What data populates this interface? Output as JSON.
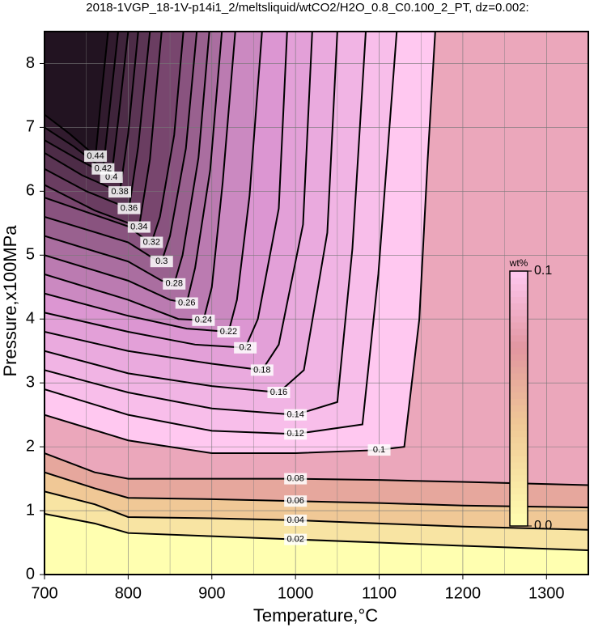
{
  "chart_data": {
    "type": "contour",
    "title": "2018-1VGP_18-1V-p14i1_2/meltsliquid/wtCO2/H2O_0.8_C0.100_2_PT, dz=0.002:",
    "x_label": "Temperature,°C",
    "y_label": "Pressure,x100MPa",
    "xlim": [
      700,
      1350
    ],
    "ylim": [
      0,
      8.5
    ],
    "xticks": [
      700,
      800,
      900,
      1000,
      1100,
      1200,
      1300
    ],
    "yticks": [
      0,
      1,
      2,
      3,
      4,
      5,
      6,
      7,
      8
    ],
    "grid": true,
    "colorbar": {
      "title": "wt%",
      "ticks": [
        {
          "value": 0,
          "label": "0.0"
        },
        0.1
      ]
    },
    "contours": [
      {
        "level": 0.02,
        "x": [
          700,
          760,
          800,
          900,
          1000,
          1100,
          1200,
          1350
        ],
        "y": [
          0.95,
          0.8,
          0.65,
          0.6,
          0.55,
          0.5,
          0.45,
          0.38
        ]
      },
      {
        "level": 0.04,
        "x": [
          700,
          760,
          800,
          900,
          1000,
          1100,
          1200,
          1350
        ],
        "y": [
          1.3,
          1.1,
          0.9,
          0.88,
          0.85,
          0.8,
          0.75,
          0.7
        ]
      },
      {
        "level": 0.06,
        "x": [
          700,
          760,
          800,
          900,
          1000,
          1100,
          1200,
          1350
        ],
        "y": [
          1.6,
          1.35,
          1.2,
          1.18,
          1.15,
          1.12,
          1.08,
          1.05
        ]
      },
      {
        "level": 0.08,
        "x": [
          700,
          760,
          800,
          900,
          1000,
          1100,
          1200,
          1350
        ],
        "y": [
          1.9,
          1.6,
          1.5,
          1.5,
          1.5,
          1.48,
          1.45,
          1.4
        ]
      },
      {
        "level": 0.1,
        "x": [
          700,
          800,
          900,
          1000,
          1100,
          1130,
          1148,
          1158,
          1167
        ],
        "y": [
          2.5,
          2.1,
          1.9,
          1.9,
          1.95,
          2.0,
          4.0,
          6.5,
          8.5
        ]
      },
      {
        "level": 0.12,
        "x": [
          700,
          800,
          900,
          1000,
          1080,
          1099,
          1121
        ],
        "y": [
          2.9,
          2.5,
          2.25,
          2.2,
          2.35,
          4.7,
          8.5
        ]
      },
      {
        "level": 0.14,
        "x": [
          700,
          800,
          900,
          1000,
          1050,
          1068,
          1084
        ],
        "y": [
          3.2,
          2.85,
          2.6,
          2.5,
          2.7,
          5.1,
          8.5
        ]
      },
      {
        "level": 0.16,
        "x": [
          700,
          800,
          900,
          980,
          1010,
          1038,
          1050
        ],
        "y": [
          3.5,
          3.15,
          2.95,
          2.85,
          3.2,
          5.35,
          8.5
        ]
      },
      {
        "level": 0.18,
        "x": [
          700,
          800,
          900,
          960,
          980,
          1009,
          1020
        ],
        "y": [
          3.8,
          3.5,
          3.3,
          3.2,
          3.6,
          5.48,
          8.5
        ]
      },
      {
        "level": 0.2,
        "x": [
          700,
          800,
          880,
          940,
          955,
          980,
          990
        ],
        "y": [
          4.1,
          3.8,
          3.6,
          3.55,
          4.0,
          5.73,
          8.5
        ]
      },
      {
        "level": 0.22,
        "x": [
          700,
          800,
          870,
          920,
          930,
          945,
          960
        ],
        "y": [
          4.4,
          4.05,
          3.85,
          3.8,
          4.3,
          5.92,
          8.5
        ]
      },
      {
        "level": 0.24,
        "x": [
          700,
          800,
          860,
          890,
          900,
          913,
          928
        ],
        "y": [
          4.7,
          4.3,
          4.0,
          3.98,
          4.5,
          6.14,
          8.5
        ]
      },
      {
        "level": 0.26,
        "x": [
          700,
          800,
          850,
          870,
          880,
          898,
          912
        ],
        "y": [
          5.0,
          4.6,
          4.3,
          4.25,
          4.8,
          6.33,
          8.5
        ]
      },
      {
        "level": 0.28,
        "x": [
          700,
          800,
          840,
          855,
          865,
          884,
          897
        ],
        "y": [
          5.3,
          4.9,
          4.6,
          4.55,
          5.0,
          6.52,
          8.5
        ]
      },
      {
        "level": 0.3,
        "x": [
          700,
          800,
          830,
          840,
          850,
          869,
          882
        ],
        "y": [
          5.6,
          5.2,
          4.95,
          4.9,
          5.3,
          6.67,
          8.5
        ]
      },
      {
        "level": 0.32,
        "x": [
          700,
          800,
          820,
          828,
          838,
          855,
          866
        ],
        "y": [
          5.9,
          5.45,
          5.25,
          5.2,
          5.6,
          6.88,
          8.5
        ]
      },
      {
        "level": 0.34,
        "x": [
          700,
          760,
          813,
          826,
          840
        ],
        "y": [
          6.1,
          5.7,
          5.44,
          6.5,
          8.5
        ]
      },
      {
        "level": 0.36,
        "x": [
          700,
          750,
          801,
          812,
          826
        ],
        "y": [
          6.35,
          6.0,
          5.73,
          6.7,
          8.5
        ]
      },
      {
        "level": 0.38,
        "x": [
          700,
          745,
          790,
          800,
          812
        ],
        "y": [
          6.6,
          6.25,
          5.99,
          6.9,
          8.5
        ]
      },
      {
        "level": 0.4,
        "x": [
          700,
          740,
          780,
          788,
          800
        ],
        "y": [
          6.8,
          6.5,
          6.22,
          7.1,
          8.5
        ]
      },
      {
        "level": 0.42,
        "x": [
          700,
          735,
          770,
          778,
          788
        ],
        "y": [
          7.0,
          6.7,
          6.35,
          7.3,
          8.5
        ]
      },
      {
        "level": 0.44,
        "x": [
          700,
          730,
          761,
          768,
          776
        ],
        "y": [
          7.2,
          6.9,
          6.55,
          7.5,
          8.5
        ]
      }
    ]
  }
}
